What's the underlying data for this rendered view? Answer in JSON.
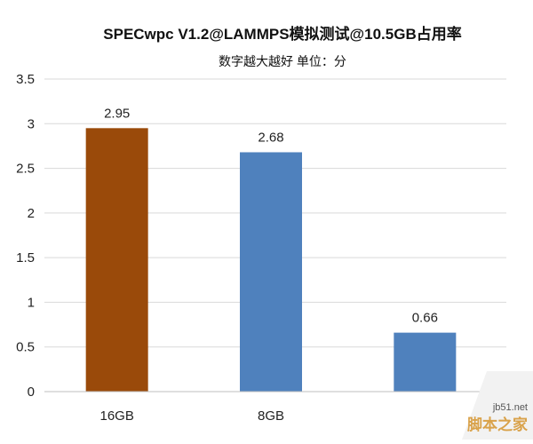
{
  "chart_data": {
    "type": "bar",
    "title": "SPECwpc V1.2@LAMMPS模拟测试@10.5GB占用率",
    "subtitle": "数字越大越好 单位：分",
    "categories": [
      "16GB",
      "8GB",
      ""
    ],
    "values": [
      2.95,
      2.68,
      0.66
    ],
    "value_labels": [
      "2.95",
      "2.68",
      "0.66"
    ],
    "bar_colors": [
      "#9a4a0a",
      "#4f81bd",
      "#4f81bd"
    ],
    "ylim": [
      0,
      3.5
    ],
    "yticks": [
      0,
      0.5,
      1,
      1.5,
      2,
      2.5,
      3,
      3.5
    ],
    "ytick_labels": [
      "0",
      "0.5",
      "1",
      "1.5",
      "2",
      "2.5",
      "3",
      "3.5"
    ],
    "grid": true,
    "xlabel": "",
    "ylabel": ""
  },
  "watermark": {
    "site": "jb51.net",
    "name": "脚本之家"
  }
}
